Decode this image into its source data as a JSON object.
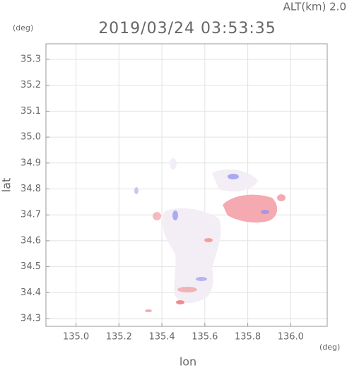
{
  "chart_data": {
    "type": "map",
    "title": "2019/03/24 03:53:35",
    "subtitle": "ALT(km) 2.0",
    "x_label": "lon",
    "y_label": "lat",
    "x_unit": "(deg)",
    "y_unit": "(deg)",
    "xlim": [
      134.86,
      136.17
    ],
    "ylim": [
      34.27,
      35.36
    ],
    "xticks": [
      {
        "value": 135.0,
        "label": "135.0"
      },
      135.2,
      135.4,
      135.6,
      135.8,
      {
        "value": 136.0,
        "label": "136.0"
      }
    ],
    "yticks": [
      34.3,
      34.4,
      34.5,
      34.6,
      34.7,
      34.8,
      34.9,
      {
        "value": 35.0,
        "label": "35.0"
      },
      35.1,
      35.2,
      35.3
    ],
    "grid": true
  }
}
